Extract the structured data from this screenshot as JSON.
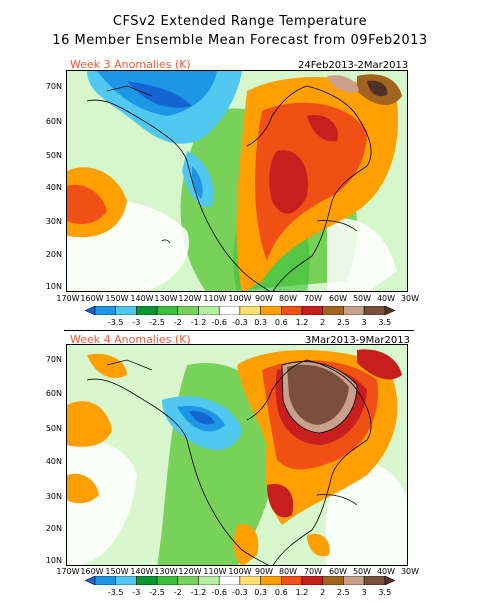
{
  "header": {
    "title_line1": "CFSv2 Extended Range Temperature",
    "title_line2": "16 Member Ensemble Mean Forecast from 09Feb2013"
  },
  "panels": [
    {
      "label": "Week 3 Anomalies (K)",
      "dates": "24Feb2013-2Mar2013",
      "lat_labels": [
        "70N",
        "60N",
        "50N",
        "40N",
        "30N",
        "20N",
        "10N"
      ],
      "lon_labels": [
        "170W",
        "160W",
        "150W",
        "140W",
        "130W",
        "120W",
        "110W",
        "100W",
        "90W",
        "80W",
        "70W",
        "60W",
        "50W",
        "40W",
        "30W"
      ]
    },
    {
      "label": "Week 4 Anomalies (K)",
      "dates": "3Mar2013-9Mar2013",
      "lat_labels": [
        "70N",
        "60N",
        "50N",
        "40N",
        "30N",
        "20N",
        "10N"
      ],
      "lon_labels": [
        "170W",
        "160W",
        "150W",
        "140W",
        "130W",
        "120W",
        "110W",
        "100W",
        "90W",
        "80W",
        "70W",
        "60W",
        "50W",
        "40W",
        "30W"
      ]
    }
  ],
  "legend": {
    "unit": "K",
    "labels": [
      "-3.5",
      "-3",
      "-2.5",
      "-2",
      "-1.2",
      "-0.6",
      "-0.3",
      "0.3",
      "0.6",
      "1.2",
      "2",
      "2.5",
      "3",
      "3.5"
    ],
    "colors": [
      "#1464d2",
      "#1e96e6",
      "#50c8f0",
      "#0a9632",
      "#3cbe3c",
      "#78d25a",
      "#b4f0a0",
      "#ffffff",
      "#ffe070",
      "#ffa000",
      "#f05014",
      "#c81e1e",
      "#a0641e",
      "#c8a08c",
      "#78503c",
      "#503228"
    ]
  },
  "colors": {
    "panel_label": "#e85a3c",
    "coastline": "#000000"
  }
}
